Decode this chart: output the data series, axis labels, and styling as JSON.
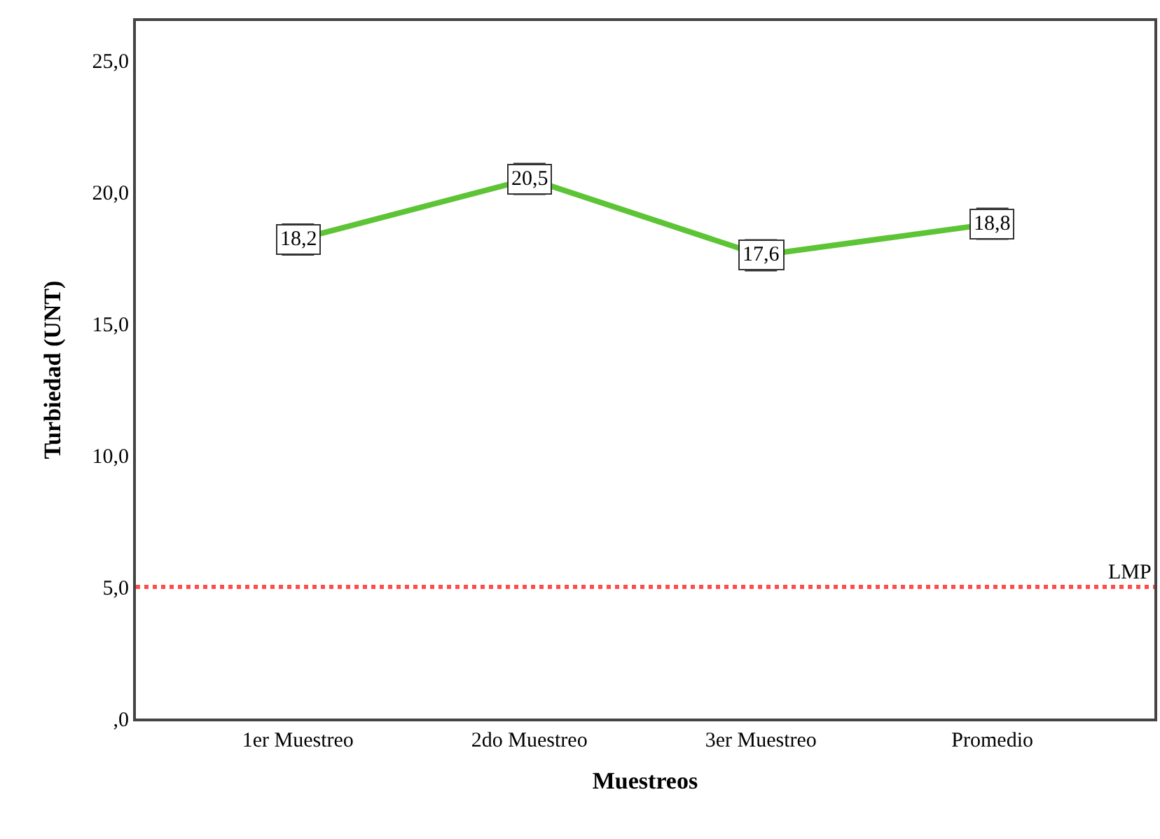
{
  "chart_data": {
    "type": "line",
    "xlabel": "Muestreos",
    "ylabel": "Turbiedad (UNT)",
    "categories": [
      "1er Muestreo",
      "2do Muestreo",
      "3er Muestreo",
      "Promedio"
    ],
    "series": [
      {
        "color": "#5cc435",
        "values": [
          18.2,
          20.5,
          17.6,
          18.8
        ],
        "value_labels": [
          "18,2",
          "20,5",
          "17,6",
          "18,8"
        ]
      }
    ],
    "ylim": [
      0,
      26.5
    ],
    "yticks": [
      {
        "value": 0,
        "label": ",0"
      },
      {
        "value": 5,
        "label": "5,0"
      },
      {
        "value": 10,
        "label": "10,0"
      },
      {
        "value": 15,
        "label": "15,0"
      },
      {
        "value": 20,
        "label": "20,0"
      },
      {
        "value": 25,
        "label": "25,0"
      }
    ],
    "ref_lines": [
      {
        "axis": "y",
        "value": 5,
        "label": "LMP",
        "color": "#ff4d4d",
        "line_style": "dotted"
      }
    ],
    "marker": "square",
    "line_style": "solid"
  }
}
